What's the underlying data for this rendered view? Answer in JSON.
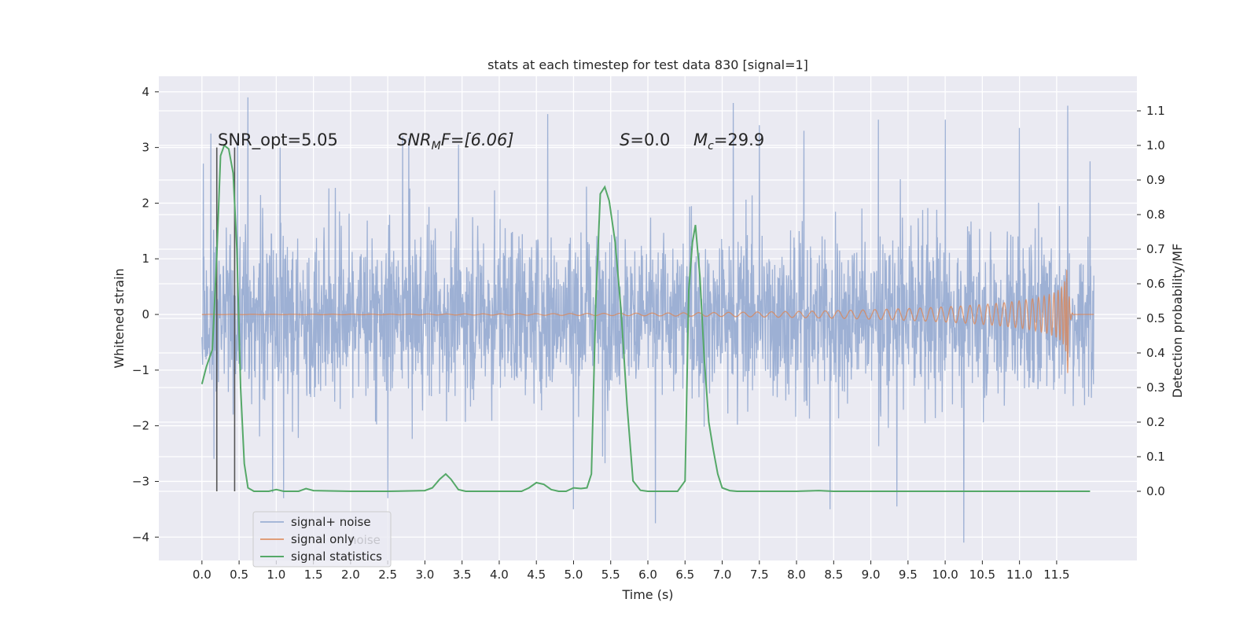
{
  "chart_data": {
    "type": "line",
    "title": "stats at each timestep for test data 830 [signal=1]",
    "xlabel": "Time (s)",
    "ylabel": "Whitened strain",
    "y2label": "Detection probability/MF",
    "xlim": [
      -0.58,
      12.58
    ],
    "ylim": [
      -4.42,
      4.28
    ],
    "y2lim": [
      -0.2,
      1.2
    ],
    "x_ticks": [
      "0.0",
      "0.5",
      "1.0",
      "1.5",
      "2.0",
      "2.5",
      "3.0",
      "3.5",
      "4.0",
      "4.5",
      "5.0",
      "5.5",
      "6.0",
      "6.5",
      "7.0",
      "7.5",
      "8.0",
      "8.5",
      "9.0",
      "9.5",
      "10.0",
      "10.5",
      "11.0",
      "11.5"
    ],
    "y_ticks": [
      "4",
      "3",
      "2",
      "1",
      "0",
      "−1",
      "−2",
      "−3",
      "−4"
    ],
    "y2_ticks": [
      "1.1",
      "1.0",
      "0.9",
      "0.8",
      "0.7",
      "0.6",
      "0.5",
      "0.4",
      "0.3",
      "0.2",
      "0.1",
      "0.0"
    ],
    "grid": true,
    "background": "#eaeaf2",
    "legend": {
      "placement": "lower-left",
      "entries": [
        "signal+ noise",
        "signal only",
        "signal statistics"
      ],
      "hidden_text": "noise"
    },
    "annotations": {
      "snr_opt": "SNR_opt=5.05",
      "snr_mf_label": "SNR",
      "snr_mf_sub": "M",
      "snr_mf_rest": "F=[6.06]",
      "s_label": "S",
      "s_value": "=0.0",
      "mc_label": "M",
      "mc_sub": "c",
      "mc_value": "=29.9"
    },
    "vlines_x": [
      0.2,
      0.44
    ],
    "series": [
      {
        "name": "signal+ noise",
        "color": "#8fa6cf",
        "axis": "left",
        "x_range": [
          0.0,
          12.0
        ],
        "envelope_typical": 1.3,
        "max": 3.9,
        "min": -4.1,
        "spikes": [
          {
            "x": 0.12,
            "y": 3.25
          },
          {
            "x": 0.48,
            "y": 3.2
          },
          {
            "x": 0.62,
            "y": 3.9
          },
          {
            "x": 0.95,
            "y": -3.2
          },
          {
            "x": 1.1,
            "y": -3.3
          },
          {
            "x": 1.05,
            "y": 3.0
          },
          {
            "x": 2.5,
            "y": -3.3
          },
          {
            "x": 2.7,
            "y": 3.2
          },
          {
            "x": 3.45,
            "y": 3.05
          },
          {
            "x": 4.65,
            "y": 3.6
          },
          {
            "x": 5.0,
            "y": -3.5
          },
          {
            "x": 6.1,
            "y": -3.75
          },
          {
            "x": 7.15,
            "y": 3.8
          },
          {
            "x": 7.5,
            "y": 3.4
          },
          {
            "x": 8.1,
            "y": 3.3
          },
          {
            "x": 8.45,
            "y": -3.5
          },
          {
            "x": 9.1,
            "y": 3.5
          },
          {
            "x": 9.35,
            "y": -3.45
          },
          {
            "x": 10.0,
            "y": 3.5
          },
          {
            "x": 10.25,
            "y": -4.1
          },
          {
            "x": 11.0,
            "y": 3.35
          },
          {
            "x": 11.65,
            "y": 3.75
          },
          {
            "x": 11.95,
            "y": 2.75
          }
        ]
      },
      {
        "name": "signal only",
        "color": "#dd8452",
        "axis": "left",
        "x_range": [
          0.0,
          12.0
        ],
        "chirp_peak_x": 11.65,
        "chirp_max": 1.1,
        "chirp_min": -1.05
      },
      {
        "name": "signal statistics",
        "color": "#55a868",
        "axis": "right",
        "x": [
          0.0,
          0.06,
          0.14,
          0.2,
          0.25,
          0.3,
          0.36,
          0.42,
          0.47,
          0.52,
          0.57,
          0.62,
          0.7,
          0.8,
          0.9,
          1.0,
          1.1,
          1.2,
          1.3,
          1.4,
          1.5,
          2.0,
          2.5,
          3.0,
          3.1,
          3.2,
          3.28,
          3.35,
          3.45,
          3.55,
          3.7,
          4.0,
          4.3,
          4.4,
          4.5,
          4.6,
          4.7,
          4.8,
          4.9,
          5.0,
          5.1,
          5.18,
          5.24,
          5.3,
          5.36,
          5.42,
          5.48,
          5.56,
          5.64,
          5.72,
          5.8,
          5.9,
          6.0,
          6.2,
          6.4,
          6.5,
          6.55,
          6.6,
          6.64,
          6.7,
          6.76,
          6.82,
          6.88,
          6.94,
          7.0,
          7.1,
          7.2,
          7.5,
          8.0,
          8.3,
          8.5,
          9.0,
          10.0,
          11.0,
          11.5,
          11.95
        ],
        "values": [
          0.31,
          0.36,
          0.41,
          0.68,
          0.97,
          1.0,
          0.99,
          0.92,
          0.7,
          0.3,
          0.08,
          0.01,
          0.0,
          0.0,
          0.0,
          0.005,
          0.0,
          0.0,
          0.0,
          0.008,
          0.002,
          0.0,
          0.0,
          0.002,
          0.01,
          0.035,
          0.05,
          0.035,
          0.005,
          0.0,
          0.0,
          0.0,
          0.0,
          0.01,
          0.025,
          0.02,
          0.005,
          0.0,
          0.0,
          0.01,
          0.008,
          0.01,
          0.05,
          0.55,
          0.86,
          0.88,
          0.84,
          0.72,
          0.52,
          0.25,
          0.03,
          0.003,
          0.0,
          0.0,
          0.0,
          0.03,
          0.58,
          0.72,
          0.77,
          0.62,
          0.38,
          0.2,
          0.12,
          0.05,
          0.01,
          0.002,
          0.0,
          0.0,
          0.0,
          0.002,
          0.0,
          0.0,
          0.0,
          0.0,
          0.0,
          0.0
        ]
      }
    ]
  }
}
